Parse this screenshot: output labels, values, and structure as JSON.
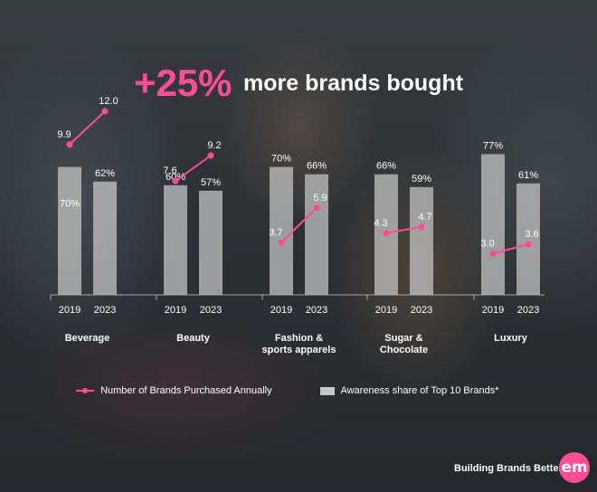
{
  "headline": {
    "big": "+25%",
    "rest": "more brands bought"
  },
  "legend": {
    "line_label": "Number of Brands Purchased Annually",
    "bar_label": "Awareness share of Top 10 Brands*"
  },
  "footer": {
    "tagline": "Building Brands Better",
    "logo_text": "em"
  },
  "colors": {
    "accent": "#ff4d97",
    "bar": "#c8c8c8",
    "text": "#ffffff"
  },
  "chart_data": {
    "type": "bar",
    "groups": [
      {
        "category": "Beverage",
        "years": [
          "2019",
          "2023"
        ],
        "awareness_share": [
          "70%",
          "62%"
        ],
        "brands_purchased": [
          9.9,
          12.0
        ]
      },
      {
        "category": "Beauty",
        "years": [
          "2019",
          "2023"
        ],
        "awareness_share": [
          "60%",
          "57%"
        ],
        "brands_purchased": [
          7.6,
          9.2
        ]
      },
      {
        "category": "Fashion & sports apparels",
        "years": [
          "2019",
          "2023"
        ],
        "awareness_share": [
          "70%",
          "66%"
        ],
        "brands_purchased": [
          3.7,
          5.9
        ]
      },
      {
        "category": "Sugar & Chocolate",
        "years": [
          "2019",
          "2023"
        ],
        "awareness_share": [
          "66%",
          "59%"
        ],
        "brands_purchased": [
          4.3,
          4.7
        ]
      },
      {
        "category": "Luxury",
        "years": [
          "2019",
          "2023"
        ],
        "awareness_share": [
          "77%",
          "61%"
        ],
        "brands_purchased": [
          3.0,
          3.6
        ]
      }
    ],
    "series": [
      {
        "name": "Awareness share of Top 10 Brands*",
        "kind": "bar",
        "values": [
          70,
          62,
          60,
          57,
          70,
          66,
          66,
          59,
          77,
          61
        ]
      },
      {
        "name": "Number of Brands Purchased Annually",
        "kind": "line",
        "values": [
          9.9,
          12.0,
          7.6,
          9.2,
          3.7,
          5.9,
          4.3,
          4.7,
          3.0,
          3.6
        ]
      }
    ],
    "legend_position": "bottom",
    "grid": false
  }
}
